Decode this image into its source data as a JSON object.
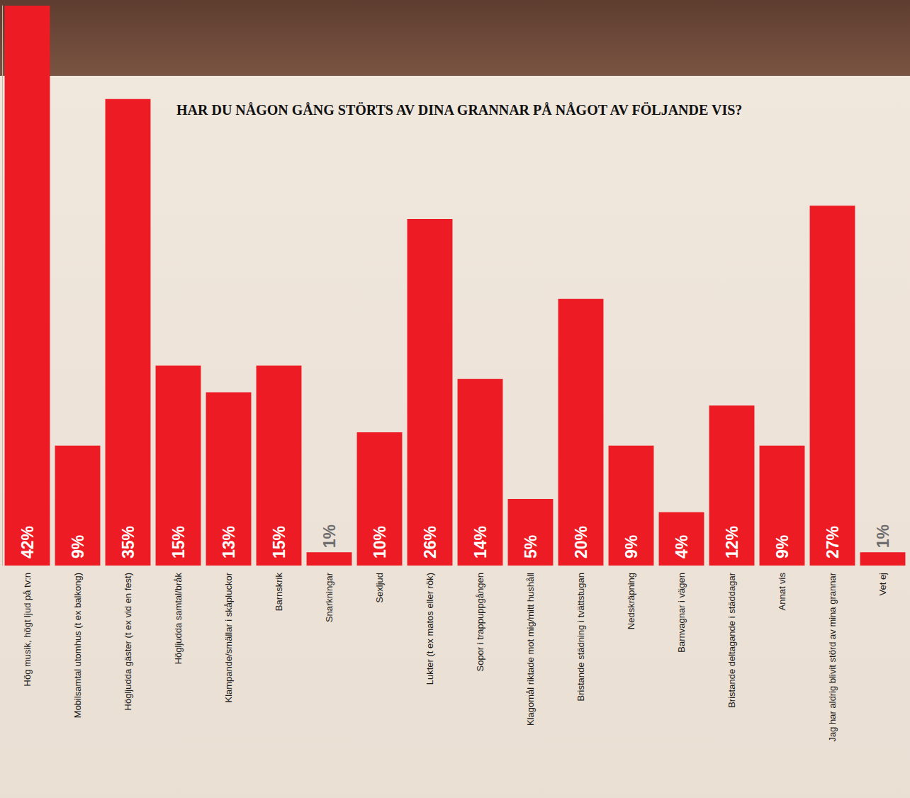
{
  "chart_data": {
    "type": "bar",
    "title": "HAR DU NÅGON GÅNG STÖRTS AV DINA GRANNAR PÅ NÅGOT AV FÖLJANDE VIS?",
    "categories": [
      "Hög musik, högt ljud på tv:n",
      "Mobilsamtal utomhus (t ex balkong)",
      "Högljudda gäster (t ex vid en fest)",
      "Högljudda samtal/bråk",
      "Klampande/smällar i skåpluckor",
      "Barnskrik",
      "Snarkningar",
      "Sexljud",
      "Lukter (t ex matos eller rök)",
      "Sopor i trappuppgången",
      "Klagomål riktade mot mig/mitt hushåll",
      "Bristande städning i tvättstugan",
      "Nedskräpning",
      "Barnvagnar i vägen",
      "Bristande deltagande i städdagar",
      "Annat vis",
      "Jag har aldrig blivit störd av mina grannar",
      "Vet ej"
    ],
    "values": [
      42,
      9,
      35,
      15,
      13,
      15,
      1,
      10,
      26,
      14,
      5,
      20,
      9,
      4,
      12,
      9,
      27,
      1
    ],
    "value_labels": [
      "42%",
      "9%",
      "35%",
      "15%",
      "13%",
      "15%",
      "1%",
      "10%",
      "26%",
      "14%",
      "5%",
      "20%",
      "9%",
      "4%",
      "12%",
      "9%",
      "27%",
      "1%"
    ],
    "color": "#ed1c24",
    "ylim": [
      0,
      42
    ],
    "grid": false,
    "data_labels": true,
    "tick_labels": "x"
  }
}
